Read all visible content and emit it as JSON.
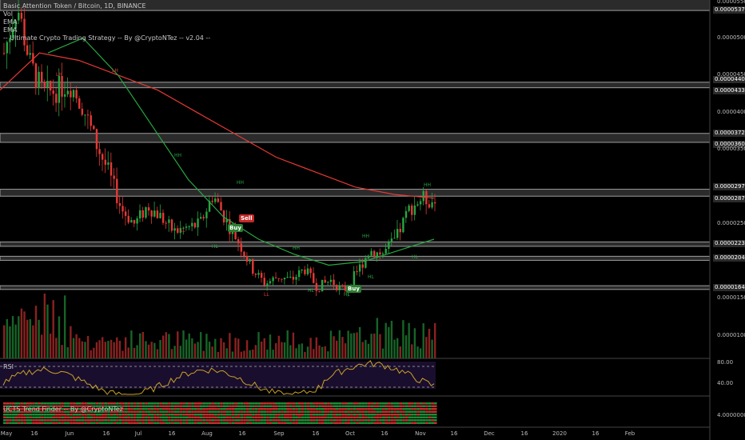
{
  "title": "Basic Attention Token / Bitcoin, 1D, BINANCE",
  "legend": [
    "Vol",
    "EMA",
    "EMA",
    "-- Ultimate Crypto Trading Strategy -- By @CryptoNTez -- v2.04 --"
  ],
  "rsi_label": "RSI",
  "trend_label": "UCTS Trend Finder -- By @CryptoNTez",
  "price_axis": [
    "0.00005500",
    "0.00005370",
    "0.00005000",
    "0.00004500",
    "0.00004407",
    "0.00004333",
    "0.00004000",
    "0.00003720",
    "0.00003600",
    "0.00003500",
    "0.00002970",
    "0.00002877",
    "0.00002500",
    "0.00002233",
    "0.00002041",
    "0.00001649",
    "0.00001500",
    "0.00001000"
  ],
  "rsi_axis": [
    "80.00",
    "40.00"
  ],
  "trend_axis": [
    "4.00000000"
  ],
  "date_axis": [
    "May",
    "16",
    "Jun",
    "16",
    "Jul",
    "16",
    "Aug",
    "16",
    "Sep",
    "16",
    "Oct",
    "16",
    "Nov",
    "16",
    "Dec",
    "16",
    "2020",
    "16",
    "Feb"
  ],
  "signals": {
    "sell": "Sell",
    "buy1": "Buy",
    "buy2": "Buy"
  },
  "colors": {
    "ema_slow": "#e53935",
    "ema_fast": "#26a641",
    "up": "#26a641",
    "down": "#e53935",
    "rsi": "#c9a227",
    "zone": "#9e9e9e"
  },
  "chart_data": {
    "type": "candlestick",
    "x": [
      "2019-04-24",
      "2019-10-26"
    ],
    "price_levels": [
      5.37e-05,
      4.407e-05,
      4.333e-05,
      3.72e-05,
      3.6e-05,
      2.97e-05,
      2.877e-05,
      2.233e-05,
      2.041e-05,
      1.649e-05
    ],
    "close_path": [
      4.8e-05,
      5.45e-05,
      4.65e-05,
      4.25e-05,
      4.3e-05,
      4.4e-05,
      4.1e-05,
      3.6e-05,
      3.2e-05,
      2.7e-05,
      2.5e-05,
      2.75e-05,
      2.6e-05,
      2.4e-05,
      2.45e-05,
      2.5e-05,
      2.9e-05,
      2.55e-05,
      2.25e-05,
      1.9e-05,
      1.7e-05,
      1.8e-05,
      1.75e-05,
      1.9e-05,
      1.65e-05,
      1.75e-05,
      1.6e-05,
      1.85e-05,
      2.15e-05,
      2.1e-05,
      2.3e-05,
      2.7e-05,
      2.85e-05,
      2.8e-05
    ],
    "ema_slow": [
      4.3e-05,
      4.8e-05,
      4.7e-05,
      4.5e-05,
      4.3e-05,
      4e-05,
      3.7e-05,
      3.4e-05,
      3.2e-05,
      3e-05,
      2.9e-05,
      2.85e-05
    ],
    "ema_fast": [
      4.8e-05,
      5e-05,
      4.5e-05,
      3.8e-05,
      3.1e-05,
      2.6e-05,
      2.3e-05,
      2.1e-05,
      1.95e-05,
      2e-05,
      2.15e-05,
      2.3e-05
    ],
    "rsi_range": [
      30,
      80
    ]
  }
}
